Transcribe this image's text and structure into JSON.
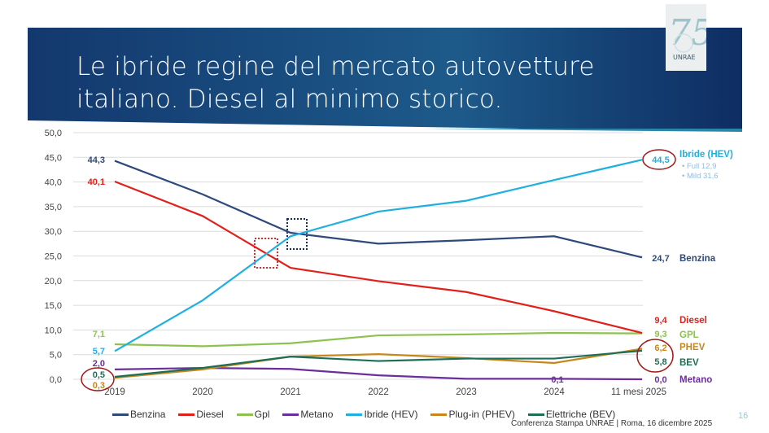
{
  "slide": {
    "title": "Le ibride regine del mercato autovetture italiano. Diesel al minimo storico.",
    "logo_text": "75 UNRAE",
    "footer": "Conferenza Stampa UNRAE | Roma, 16 dicembre 2025",
    "page_number": "16"
  },
  "chart_data": {
    "type": "line",
    "categories": [
      "2019",
      "2020",
      "2021",
      "2022",
      "2023",
      "2024",
      "11 mesi 2025"
    ],
    "ylim": [
      0,
      50
    ],
    "yticks": [
      "0,0",
      "5,0",
      "10,0",
      "15,0",
      "20,0",
      "25,0",
      "30,0",
      "35,0",
      "40,0",
      "45,0",
      "50,0"
    ],
    "grid": true,
    "legend_position": "bottom",
    "series": [
      {
        "name": "Benzina",
        "color": "#2e4a7a",
        "values": [
          44.3,
          37.5,
          29.7,
          27.5,
          28.2,
          29.0,
          24.7
        ],
        "start_label": "44,3",
        "end_label": "24,7",
        "end_name": "Benzina"
      },
      {
        "name": "Diesel",
        "color": "#e0201b",
        "values": [
          40.1,
          33.1,
          22.6,
          19.9,
          17.7,
          13.8,
          9.4
        ],
        "start_label": "40,1",
        "end_label": "9,4",
        "end_name": "Diesel"
      },
      {
        "name": "Gpl",
        "color": "#8dc24f",
        "values": [
          7.1,
          6.7,
          7.3,
          8.9,
          9.1,
          9.4,
          9.3
        ],
        "start_label": "7,1",
        "end_label": "9,3",
        "end_name": "GPL"
      },
      {
        "name": "Metano",
        "color": "#6a2f9a",
        "values": [
          2.0,
          2.3,
          2.1,
          0.8,
          0.1,
          0.1,
          0.0
        ],
        "start_label": "2,0",
        "end_label": "0,0",
        "end_name": "Metano",
        "mid_label": "0,1"
      },
      {
        "name": "Ibride (HEV)",
        "color": "#1fb0e0",
        "values": [
          5.7,
          16.0,
          29.0,
          34.0,
          36.2,
          40.4,
          44.5
        ],
        "start_label": "5,7",
        "end_label": "44,5",
        "end_name": "Ibride (HEV)",
        "sub": [
          "Full  12,9",
          "Mild 31,6"
        ]
      },
      {
        "name": "Plug-in (PHEV)",
        "color": "#c8861c",
        "values": [
          0.3,
          2.0,
          4.6,
          5.1,
          4.3,
          3.3,
          6.2
        ],
        "start_label": "0,3",
        "end_label": "6,2",
        "end_name": "PHEV"
      },
      {
        "name": "Elettriche (BEV)",
        "color": "#1e6e55",
        "values": [
          0.5,
          2.3,
          4.6,
          3.7,
          4.2,
          4.2,
          5.8
        ],
        "start_label": "0,5",
        "end_label": "5,8",
        "end_name": "BEV"
      }
    ]
  }
}
